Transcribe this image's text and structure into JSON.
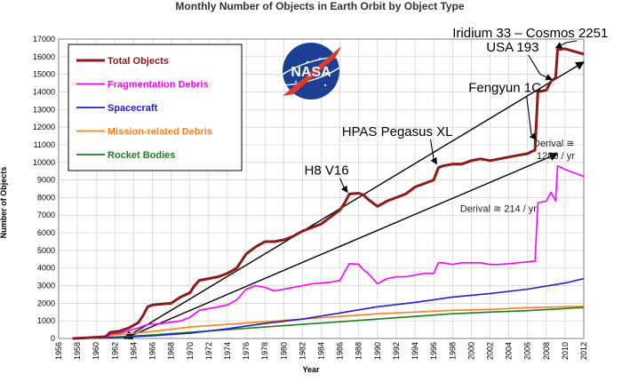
{
  "chart_data": {
    "type": "line",
    "title": "Monthly Number of Objects in Earth Orbit by Object Type",
    "xlabel": "Year",
    "ylabel": "Number of Objects",
    "xlim": [
      1956,
      2012
    ],
    "ylim": [
      0,
      17000
    ],
    "xticks": [
      1956,
      1958,
      1960,
      1962,
      1964,
      1966,
      1968,
      1970,
      1972,
      1974,
      1976,
      1978,
      1980,
      1982,
      1984,
      1986,
      1988,
      1990,
      1992,
      1994,
      1996,
      1998,
      2000,
      2002,
      2004,
      2006,
      2008,
      2010,
      2012
    ],
    "yticks": [
      0,
      1000,
      2000,
      3000,
      4000,
      5000,
      6000,
      7000,
      8000,
      9000,
      10000,
      11000,
      12000,
      13000,
      14000,
      15000,
      16000,
      17000
    ],
    "grid": true,
    "legend_position": "top-left",
    "series": [
      {
        "name": "Total Objects",
        "color": "#8B1A1A",
        "points": [
          [
            1957.5,
            0
          ],
          [
            1959,
            40
          ],
          [
            1961,
            100
          ],
          [
            1961.5,
            350
          ],
          [
            1962.5,
            420
          ],
          [
            1963.5,
            600
          ],
          [
            1964.5,
            900
          ],
          [
            1965,
            1300
          ],
          [
            1965.5,
            1800
          ],
          [
            1966,
            1900
          ],
          [
            1967,
            1950
          ],
          [
            1968,
            2000
          ],
          [
            1969,
            2350
          ],
          [
            1970,
            2600
          ],
          [
            1970.5,
            3000
          ],
          [
            1971,
            3300
          ],
          [
            1972,
            3400
          ],
          [
            1973,
            3500
          ],
          [
            1974,
            3700
          ],
          [
            1975,
            4000
          ],
          [
            1976,
            4800
          ],
          [
            1977,
            5200
          ],
          [
            1978,
            5500
          ],
          [
            1979,
            5500
          ],
          [
            1980,
            5600
          ],
          [
            1981,
            5800
          ],
          [
            1982,
            6100
          ],
          [
            1983,
            6300
          ],
          [
            1984,
            6500
          ],
          [
            1985,
            6900
          ],
          [
            1986,
            7300
          ],
          [
            1986.5,
            7700
          ],
          [
            1987,
            8200
          ],
          [
            1988,
            8250
          ],
          [
            1988.5,
            8150
          ],
          [
            1989,
            7900
          ],
          [
            1990,
            7500
          ],
          [
            1991,
            7800
          ],
          [
            1992,
            8000
          ],
          [
            1993,
            8200
          ],
          [
            1994,
            8600
          ],
          [
            1995,
            8800
          ],
          [
            1996,
            9000
          ],
          [
            1996.5,
            9700
          ],
          [
            1997,
            9800
          ],
          [
            1998,
            9900
          ],
          [
            1999,
            9900
          ],
          [
            2000,
            10100
          ],
          [
            2001,
            10200
          ],
          [
            2002,
            10100
          ],
          [
            2003,
            10200
          ],
          [
            2004,
            10300
          ],
          [
            2005,
            10400
          ],
          [
            2006,
            10500
          ],
          [
            2006.8,
            10700
          ],
          [
            2007.1,
            14000
          ],
          [
            2008,
            14100
          ],
          [
            2008.5,
            14600
          ],
          [
            2009,
            14800
          ],
          [
            2009.2,
            16400
          ],
          [
            2010,
            16450
          ],
          [
            2011,
            16300
          ],
          [
            2012,
            16150
          ]
        ]
      },
      {
        "name": "Fragmentation Debris",
        "color": "#FF00FF",
        "points": [
          [
            1961,
            0
          ],
          [
            1961.5,
            250
          ],
          [
            1962.5,
            300
          ],
          [
            1963.5,
            450
          ],
          [
            1964.5,
            600
          ],
          [
            1965.5,
            800
          ],
          [
            1967,
            850
          ],
          [
            1969,
            1000
          ],
          [
            1970,
            1200
          ],
          [
            1971,
            1600
          ],
          [
            1972,
            1700
          ],
          [
            1973,
            1800
          ],
          [
            1974,
            1900
          ],
          [
            1975,
            2200
          ],
          [
            1976,
            2800
          ],
          [
            1977,
            3000
          ],
          [
            1978,
            2900
          ],
          [
            1979,
            2700
          ],
          [
            1980,
            2800
          ],
          [
            1981,
            2900
          ],
          [
            1982,
            3000
          ],
          [
            1983,
            3100
          ],
          [
            1984,
            3150
          ],
          [
            1985,
            3200
          ],
          [
            1986,
            3300
          ],
          [
            1986.5,
            3800
          ],
          [
            1987,
            4250
          ],
          [
            1988,
            4200
          ],
          [
            1988.5,
            3900
          ],
          [
            1989,
            3700
          ],
          [
            1990,
            3100
          ],
          [
            1991,
            3400
          ],
          [
            1992,
            3500
          ],
          [
            1993,
            3500
          ],
          [
            1994,
            3600
          ],
          [
            1995,
            3700
          ],
          [
            1996,
            3700
          ],
          [
            1996.5,
            4300
          ],
          [
            1997,
            4300
          ],
          [
            1998,
            4200
          ],
          [
            1999,
            4300
          ],
          [
            2000,
            4300
          ],
          [
            2001,
            4300
          ],
          [
            2002,
            4200
          ],
          [
            2003,
            4200
          ],
          [
            2004,
            4250
          ],
          [
            2005,
            4300
          ],
          [
            2006,
            4350
          ],
          [
            2006.8,
            4400
          ],
          [
            2007.1,
            7700
          ],
          [
            2008,
            7800
          ],
          [
            2008.5,
            8300
          ],
          [
            2009,
            7800
          ],
          [
            2009.2,
            9800
          ],
          [
            2010,
            9600
          ],
          [
            2011,
            9400
          ],
          [
            2012,
            9200
          ]
        ]
      },
      {
        "name": "Spacecraft",
        "color": "#1F1FD0",
        "points": [
          [
            1957.5,
            0
          ],
          [
            1962,
            50
          ],
          [
            1966,
            150
          ],
          [
            1970,
            300
          ],
          [
            1974,
            550
          ],
          [
            1978,
            850
          ],
          [
            1982,
            1100
          ],
          [
            1986,
            1450
          ],
          [
            1990,
            1800
          ],
          [
            1994,
            2050
          ],
          [
            1998,
            2350
          ],
          [
            2002,
            2550
          ],
          [
            2006,
            2800
          ],
          [
            2010,
            3150
          ],
          [
            2012,
            3400
          ]
        ]
      },
      {
        "name": "Mission-related Debris",
        "color": "#FF8020",
        "points": [
          [
            1957.5,
            0
          ],
          [
            1960,
            40
          ],
          [
            1962,
            200
          ],
          [
            1966,
            400
          ],
          [
            1970,
            650
          ],
          [
            1974,
            800
          ],
          [
            1978,
            950
          ],
          [
            1982,
            1100
          ],
          [
            1986,
            1250
          ],
          [
            1990,
            1400
          ],
          [
            1994,
            1500
          ],
          [
            1998,
            1600
          ],
          [
            2002,
            1650
          ],
          [
            2006,
            1750
          ],
          [
            2010,
            1800
          ],
          [
            2012,
            1830
          ]
        ]
      },
      {
        "name": "Rocket Bodies",
        "color": "#1E7F1E",
        "points": [
          [
            1957.5,
            0
          ],
          [
            1962,
            80
          ],
          [
            1966,
            200
          ],
          [
            1970,
            350
          ],
          [
            1974,
            500
          ],
          [
            1978,
            650
          ],
          [
            1982,
            800
          ],
          [
            1986,
            950
          ],
          [
            1990,
            1100
          ],
          [
            1994,
            1250
          ],
          [
            1998,
            1400
          ],
          [
            2002,
            1500
          ],
          [
            2006,
            1580
          ],
          [
            2010,
            1700
          ],
          [
            2012,
            1760
          ]
        ]
      }
    ],
    "annotations": [
      {
        "text": "H8 V16",
        "at": [
          1987,
          8200
        ],
        "label_at": [
          1982.2,
          9300
        ]
      },
      {
        "text": "HPAS Pegasus XL",
        "at": [
          1996.5,
          9800
        ],
        "label_at": [
          1986.2,
          11500
        ]
      },
      {
        "text": "Fengyun 1C",
        "at": [
          2007.1,
          11200
        ],
        "label_at": [
          1999.7,
          14000
        ]
      },
      {
        "text": "USA 193",
        "at": [
          2008.8,
          14600
        ],
        "label_at": [
          2001.6,
          16300
        ]
      },
      {
        "text": "Iridium 33 – Cosmos 2251",
        "at": [
          2009.2,
          16400
        ],
        "label_at": [
          1998.0,
          17100
        ]
      }
    ],
    "trend_lines": [
      {
        "label": "Derival ≅ 214 / yr",
        "from": [
          1963,
          0
        ],
        "to": [
          2009.2,
          10500
        ],
        "label_at": [
          1998.8,
          7200
        ]
      },
      {
        "label": "Derival ≅",
        "label2": "1200 / yr",
        "from": [
          1963,
          0
        ],
        "to": [
          2012,
          15700
        ],
        "label_at": [
          2006.6,
          10900
        ]
      }
    ]
  },
  "logo_text": "NASA"
}
